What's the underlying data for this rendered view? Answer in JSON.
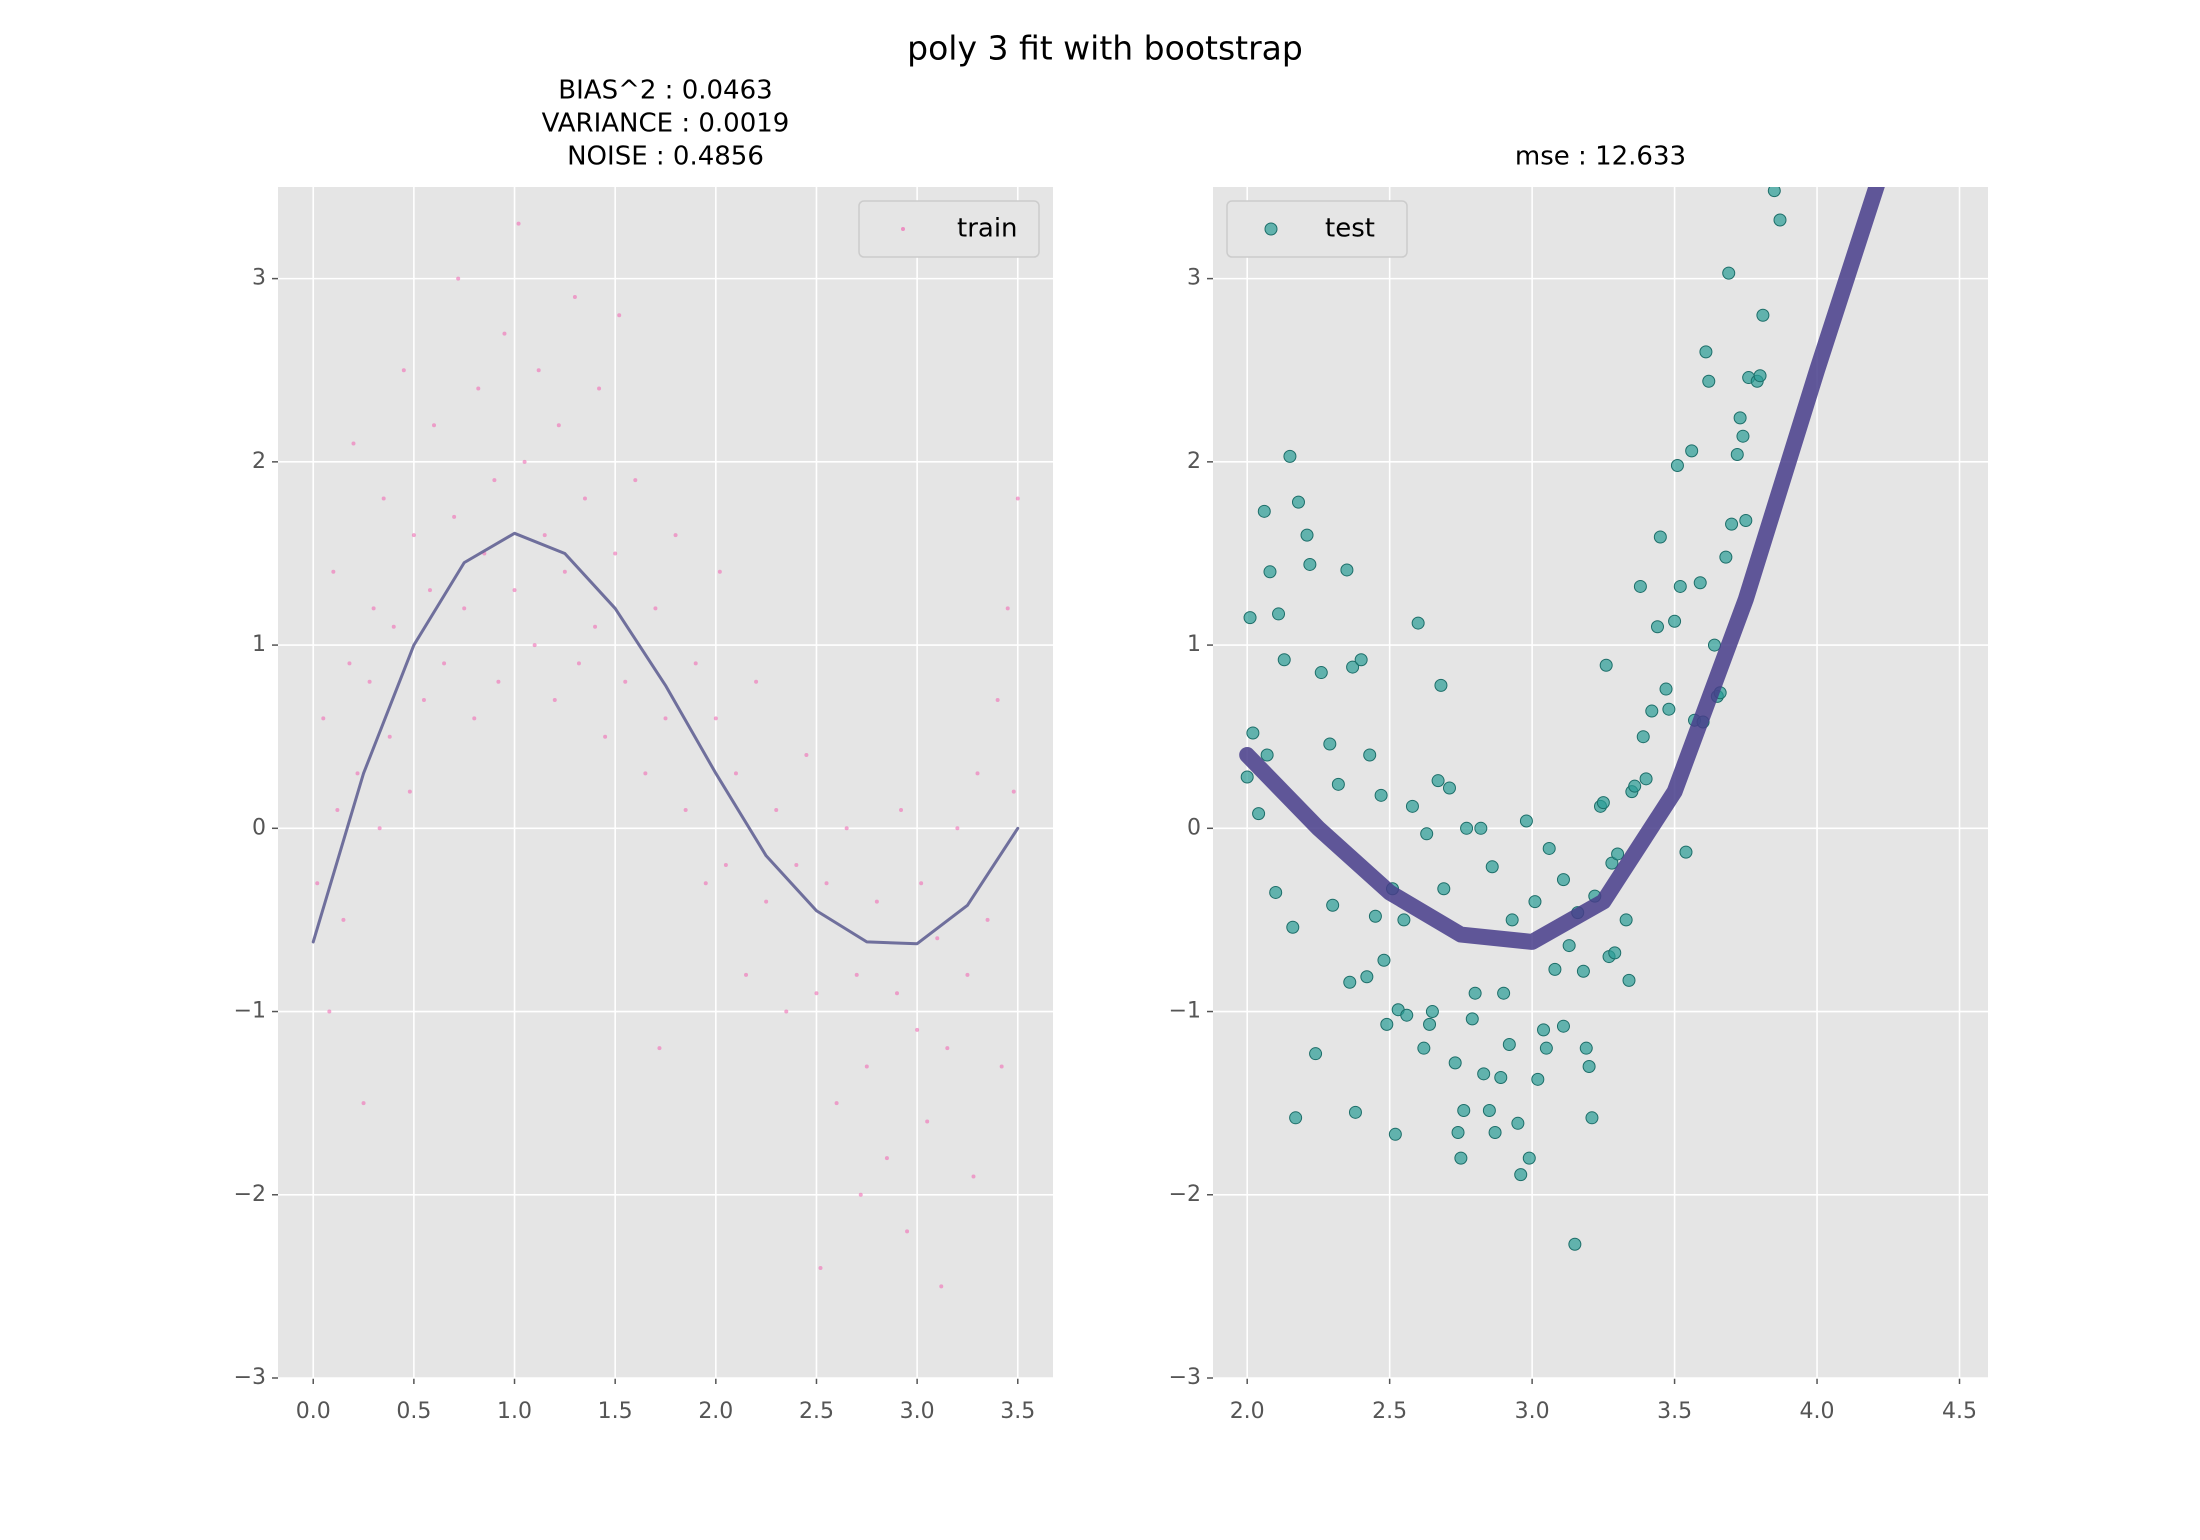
{
  "title": "poly 3 fit with bootstrap",
  "chart_data": [
    {
      "type": "scatter",
      "title_lines": [
        "BIAS^2 : 0.0463",
        "VARIANCE : 0.0019",
        "NOISE : 0.4856"
      ],
      "xlim": [
        -0.175,
        3.675
      ],
      "ylim": [
        -3,
        3.5
      ],
      "xticks": [
        {
          "value": 0,
          "label": "0.0"
        },
        0.5,
        {
          "value": 1,
          "label": "1.0"
        },
        1.5,
        {
          "value": 2,
          "label": "2.0"
        },
        2.5,
        {
          "value": 3,
          "label": "3.0"
        },
        3.5
      ],
      "yticks": [
        {
          "value": -3,
          "label": "−3"
        },
        {
          "value": -2,
          "label": "−2"
        },
        {
          "value": -1,
          "label": "−1"
        },
        0,
        1,
        2,
        3
      ],
      "grid": true,
      "legend": "upper right",
      "series": [
        {
          "name": "train",
          "mode": "markers",
          "color": "#f06cb4",
          "marker_size": 2,
          "x": [
            0.02,
            0.05,
            0.08,
            0.1,
            0.12,
            0.15,
            0.18,
            0.2,
            0.22,
            0.25,
            0.28,
            0.3,
            0.33,
            0.35,
            0.38,
            0.4,
            0.45,
            0.48,
            0.5,
            0.55,
            0.58,
            0.6,
            0.65,
            0.7,
            0.72,
            0.75,
            0.8,
            0.82,
            0.85,
            0.9,
            0.92,
            0.95,
            1.0,
            1.02,
            1.05,
            1.1,
            1.12,
            1.15,
            1.2,
            1.22,
            1.25,
            1.3,
            1.32,
            1.35,
            1.4,
            1.42,
            1.45,
            1.5,
            1.52,
            1.55,
            1.6,
            1.65,
            1.7,
            1.72,
            1.75,
            1.8,
            1.85,
            1.9,
            1.95,
            2.0,
            2.02,
            2.05,
            2.1,
            2.15,
            2.2,
            2.25,
            2.3,
            2.35,
            2.4,
            2.45,
            2.5,
            2.52,
            2.55,
            2.6,
            2.65,
            2.7,
            2.72,
            2.75,
            2.8,
            2.85,
            2.9,
            2.92,
            2.95,
            3.0,
            3.02,
            3.05,
            3.1,
            3.12,
            3.15,
            3.2,
            3.25,
            3.28,
            3.3,
            3.35,
            3.4,
            3.42,
            3.45,
            3.48,
            3.5
          ],
          "values": [
            -0.3,
            0.6,
            -1.0,
            1.4,
            0.1,
            -0.5,
            0.9,
            2.1,
            0.3,
            -1.5,
            0.8,
            1.2,
            0.0,
            1.8,
            0.5,
            1.1,
            2.5,
            0.2,
            1.6,
            0.7,
            1.3,
            2.2,
            0.9,
            1.7,
            3.0,
            1.2,
            0.6,
            2.4,
            1.5,
            1.9,
            0.8,
            2.7,
            1.3,
            3.3,
            2.0,
            1.0,
            2.5,
            1.6,
            0.7,
            2.2,
            1.4,
            2.9,
            0.9,
            1.8,
            1.1,
            2.4,
            0.5,
            1.5,
            2.8,
            0.8,
            1.9,
            0.3,
            1.2,
            -1.2,
            0.6,
            1.6,
            0.1,
            0.9,
            -0.3,
            0.6,
            1.4,
            -0.2,
            0.3,
            -0.8,
            0.8,
            -0.4,
            0.1,
            -1.0,
            -0.2,
            0.4,
            -0.9,
            -2.4,
            -0.3,
            -1.5,
            0.0,
            -0.8,
            -2.0,
            -1.3,
            -0.4,
            -1.8,
            -0.9,
            0.1,
            -2.2,
            -1.1,
            -0.3,
            -1.6,
            -0.6,
            -2.5,
            -1.2,
            0.0,
            -0.8,
            -1.9,
            0.3,
            -0.5,
            0.7,
            -1.3,
            1.2,
            0.2,
            1.8
          ]
        },
        {
          "mode": "line",
          "color": "#5b5b8f",
          "line_width": 3,
          "x": [
            0,
            0.25,
            0.5,
            0.75,
            1.0,
            1.25,
            1.5,
            1.75,
            2.0,
            2.25,
            2.5,
            2.75,
            3.0,
            3.25,
            3.5
          ],
          "values": [
            -0.62,
            0.3,
            1.0,
            1.45,
            1.61,
            1.5,
            1.2,
            0.78,
            0.3,
            -0.15,
            -0.45,
            -0.62,
            -0.63,
            -0.42,
            0.0
          ]
        }
      ]
    },
    {
      "type": "scatter",
      "title_lines": [
        "mse : 12.633"
      ],
      "xlim": [
        1.88,
        4.6
      ],
      "ylim": [
        -3,
        3.5
      ],
      "xticks": [
        {
          "value": 2,
          "label": "2.0"
        },
        2.5,
        {
          "value": 3,
          "label": "3.0"
        },
        3.5,
        {
          "value": 4,
          "label": "4.0"
        },
        4.5
      ],
      "yticks": [
        {
          "value": -3,
          "label": "−3"
        },
        {
          "value": -2,
          "label": "−2"
        },
        {
          "value": -1,
          "label": "−1"
        },
        0,
        1,
        2,
        3
      ],
      "grid": true,
      "legend": "upper left",
      "series": [
        {
          "name": "test",
          "mode": "markers",
          "color": "#2a9d95",
          "marker_size": 6,
          "x": [
            2.0,
            2.01,
            2.02,
            2.04,
            2.06,
            2.07,
            2.08,
            2.1,
            2.11,
            2.13,
            2.15,
            2.16,
            2.17,
            2.18,
            2.21,
            2.22,
            2.24,
            2.26,
            2.29,
            2.3,
            2.32,
            2.35,
            2.36,
            2.37,
            2.38,
            2.4,
            2.42,
            2.43,
            2.45,
            2.47,
            2.48,
            2.49,
            2.51,
            2.52,
            2.53,
            2.55,
            2.56,
            2.58,
            2.6,
            2.62,
            2.63,
            2.64,
            2.65,
            2.67,
            2.68,
            2.69,
            2.71,
            2.73,
            2.74,
            2.75,
            2.76,
            2.77,
            2.79,
            2.8,
            2.82,
            2.83,
            2.85,
            2.86,
            2.87,
            2.89,
            2.9,
            2.92,
            2.93,
            2.95,
            2.96,
            2.98,
            2.99,
            3.01,
            3.02,
            3.04,
            3.05,
            3.06,
            3.08,
            3.11,
            3.11,
            3.13,
            3.15,
            3.16,
            3.18,
            3.19,
            3.2,
            3.21,
            3.22,
            3.24,
            3.25,
            3.26,
            3.27,
            3.28,
            3.29,
            3.3,
            3.33,
            3.34,
            3.35,
            3.36,
            3.38,
            3.39,
            3.4,
            3.42,
            3.44,
            3.45,
            3.47,
            3.48,
            3.5,
            3.51,
            3.52,
            3.54,
            3.56,
            3.57,
            3.59,
            3.6,
            3.61,
            3.62,
            3.64,
            3.65,
            3.66,
            3.68,
            3.69,
            3.7,
            3.72,
            3.73,
            3.74,
            3.75,
            3.76,
            3.79,
            3.8,
            3.81,
            3.85,
            3.87
          ],
          "values": [
            0.28,
            1.15,
            0.52,
            0.08,
            1.73,
            0.4,
            1.4,
            -0.35,
            1.17,
            0.92,
            2.03,
            -0.54,
            -1.58,
            1.78,
            1.6,
            1.44,
            -1.23,
            0.85,
            0.46,
            -0.42,
            0.24,
            1.41,
            -0.84,
            0.88,
            -1.55,
            0.92,
            -0.81,
            0.4,
            -0.48,
            0.18,
            -0.72,
            -1.07,
            -0.33,
            -1.67,
            -0.99,
            -0.5,
            -1.02,
            0.12,
            1.12,
            -1.2,
            -0.03,
            -1.07,
            -1.0,
            0.26,
            0.78,
            -0.33,
            0.22,
            -1.28,
            -1.66,
            -1.8,
            -1.54,
            0.0,
            -1.04,
            -0.9,
            0.0,
            -1.34,
            -1.54,
            -0.21,
            -1.66,
            -1.36,
            -0.9,
            -1.18,
            -0.5,
            -1.61,
            -1.89,
            0.04,
            -1.8,
            -0.4,
            -1.37,
            -1.1,
            -1.2,
            -0.11,
            -0.77,
            -1.08,
            -0.28,
            -0.64,
            -2.27,
            -0.46,
            -0.78,
            -1.2,
            -1.3,
            -1.58,
            -0.37,
            0.12,
            0.14,
            0.89,
            -0.7,
            -0.19,
            -0.68,
            -0.14,
            -0.5,
            -0.83,
            0.2,
            0.23,
            1.32,
            0.5,
            0.27,
            0.64,
            1.1,
            1.59,
            0.76,
            0.65,
            1.13,
            1.98,
            1.32,
            -0.13,
            2.06,
            0.59,
            1.34,
            0.58,
            2.6,
            2.44,
            1.0,
            0.72,
            0.74,
            1.48,
            3.03,
            1.66,
            2.04,
            2.24,
            2.14,
            1.68,
            2.46,
            2.44,
            2.47,
            2.8,
            3.48,
            3.32
          ]
        },
        {
          "mode": "line",
          "color": "#483d8b",
          "line_width": 16,
          "x": [
            2.0,
            2.25,
            2.5,
            2.75,
            3.0,
            3.25,
            3.5,
            3.75,
            4.0,
            4.25
          ],
          "values": [
            0.4,
            0.0,
            -0.35,
            -0.58,
            -0.62,
            -0.4,
            0.2,
            1.25,
            2.5,
            3.7
          ]
        }
      ]
    }
  ]
}
